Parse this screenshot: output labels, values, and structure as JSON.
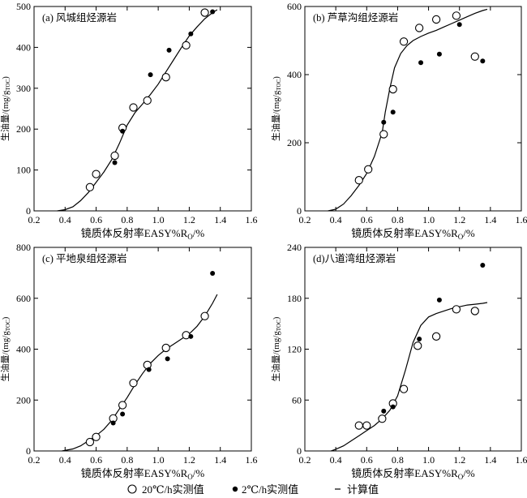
{
  "legend": {
    "open": "20℃/h实测值",
    "filled": "2℃/h实测值",
    "line": "计算值"
  },
  "chart_data": [
    {
      "type": "scatter",
      "panel_label": "(a) 风城组烃源岩",
      "xlabel": "镜质体反射率EASY%R",
      "xlabel_sub": "O",
      "xlabel_suffix": "/%",
      "ylabel": "生油量/(mg/g",
      "ylabel_sub": "TOC",
      "ylabel_suffix": ")",
      "xlim": [
        0.2,
        1.6
      ],
      "ylim": [
        0,
        500
      ],
      "xticks": [
        0.2,
        0.4,
        0.6,
        0.8,
        1.0,
        1.2,
        1.4,
        1.6
      ],
      "xtick_labels": [
        "0.2",
        "0.4",
        "0.6",
        "0.8",
        "1.0",
        "1.2",
        "1.4",
        "1.6"
      ],
      "yticks": [
        0,
        100,
        200,
        300,
        400,
        500
      ],
      "ytick_labels": [
        "0",
        "100",
        "200",
        "300",
        "400",
        "500"
      ],
      "series": [
        {
          "name": "20℃/h实测值",
          "marker": "open",
          "x": [
            0.56,
            0.6,
            0.72,
            0.77,
            0.84,
            0.93,
            1.05,
            1.18,
            1.3
          ],
          "y": [
            58,
            90,
            135,
            203,
            253,
            270,
            327,
            405,
            485
          ]
        },
        {
          "name": "2℃/h实测值",
          "marker": "filled",
          "x": [
            0.72,
            0.77,
            0.95,
            1.07,
            1.21,
            1.35
          ],
          "y": [
            118,
            195,
            333,
            393,
            433,
            487
          ]
        },
        {
          "name": "计算值",
          "marker": "line",
          "x": [
            0.35,
            0.4,
            0.45,
            0.5,
            0.55,
            0.6,
            0.65,
            0.7,
            0.75,
            0.8,
            0.85,
            0.9,
            0.95,
            1.0,
            1.05,
            1.1,
            1.15,
            1.2,
            1.25,
            1.3,
            1.35,
            1.38
          ],
          "y": [
            0,
            3,
            10,
            25,
            45,
            70,
            95,
            125,
            165,
            210,
            240,
            262,
            285,
            310,
            340,
            370,
            400,
            428,
            450,
            470,
            485,
            492
          ]
        }
      ]
    },
    {
      "type": "scatter",
      "panel_label": "(b) 芦草沟组烃源岩",
      "xlabel": "镜质体反射率EASY%R",
      "xlabel_sub": "O",
      "xlabel_suffix": "/%",
      "ylabel": "生油量/(mg/g",
      "ylabel_sub": "TOC",
      "ylabel_suffix": ")",
      "xlim": [
        0.2,
        1.6
      ],
      "ylim": [
        0,
        600
      ],
      "xticks": [
        0.2,
        0.4,
        0.6,
        0.8,
        1.0,
        1.2,
        1.4,
        1.6
      ],
      "xtick_labels": [
        "0.2",
        "0.4",
        "0.6",
        "0.8",
        "1.0",
        "1.2",
        "1.4",
        "1.6"
      ],
      "yticks": [
        0,
        200,
        400,
        600
      ],
      "ytick_labels": [
        "0",
        "200",
        "400",
        "600"
      ],
      "series": [
        {
          "name": "20℃/h实测值",
          "marker": "open",
          "x": [
            0.55,
            0.61,
            0.71,
            0.77,
            0.84,
            0.94,
            1.05,
            1.18,
            1.3
          ],
          "y": [
            90,
            122,
            225,
            357,
            497,
            537,
            562,
            573,
            453
          ]
        },
        {
          "name": "2℃/h实测值",
          "marker": "filled",
          "x": [
            0.71,
            0.77,
            0.95,
            1.07,
            1.2,
            1.35
          ],
          "y": [
            260,
            290,
            435,
            460,
            547,
            440
          ]
        },
        {
          "name": "计算值",
          "marker": "line",
          "x": [
            0.35,
            0.4,
            0.45,
            0.5,
            0.55,
            0.6,
            0.65,
            0.7,
            0.72,
            0.75,
            0.78,
            0.82,
            0.86,
            0.9,
            0.95,
            1.0,
            1.05,
            1.1,
            1.15,
            1.2,
            1.25,
            1.3,
            1.35,
            1.38
          ],
          "y": [
            0,
            5,
            20,
            45,
            75,
            110,
            160,
            230,
            290,
            360,
            420,
            462,
            485,
            500,
            512,
            522,
            530,
            540,
            550,
            560,
            570,
            580,
            588,
            592
          ]
        }
      ]
    },
    {
      "type": "scatter",
      "panel_label": "(c) 平地泉组烃源岩",
      "xlabel": "镜质体反射率EASY%R",
      "xlabel_sub": "O",
      "xlabel_suffix": "/%",
      "ylabel": "生油量/(mg/g",
      "ylabel_sub": "TOC",
      "ylabel_suffix": ")",
      "xlim": [
        0.2,
        1.6
      ],
      "ylim": [
        0,
        800
      ],
      "xticks": [
        0.2,
        0.4,
        0.6,
        0.8,
        1.0,
        1.2,
        1.4,
        1.6
      ],
      "xtick_labels": [
        "0.2",
        "0.4",
        "0.6",
        "0.8",
        "1.0",
        "1.2",
        "1.4",
        "1.6"
      ],
      "yticks": [
        0,
        200,
        400,
        600,
        800
      ],
      "ytick_labels": [
        "0",
        "200",
        "400",
        "600",
        "800"
      ],
      "series": [
        {
          "name": "20℃/h实测值",
          "marker": "open",
          "x": [
            0.56,
            0.6,
            0.71,
            0.77,
            0.84,
            0.93,
            1.05,
            1.18,
            1.3
          ],
          "y": [
            35,
            55,
            128,
            180,
            267,
            338,
            405,
            455,
            530
          ]
        },
        {
          "name": "2℃/h实测值",
          "marker": "filled",
          "x": [
            0.71,
            0.77,
            0.94,
            1.06,
            1.21,
            1.35
          ],
          "y": [
            110,
            145,
            320,
            362,
            450,
            698
          ]
        },
        {
          "name": "计算值",
          "marker": "line",
          "x": [
            0.38,
            0.45,
            0.5,
            0.55,
            0.6,
            0.65,
            0.7,
            0.75,
            0.8,
            0.85,
            0.9,
            0.95,
            1.0,
            1.05,
            1.1,
            1.15,
            1.2,
            1.25,
            1.3,
            1.35,
            1.38
          ],
          "y": [
            0,
            8,
            20,
            40,
            60,
            85,
            120,
            165,
            210,
            260,
            305,
            345,
            375,
            400,
            420,
            440,
            460,
            490,
            530,
            580,
            615
          ]
        }
      ]
    },
    {
      "type": "scatter",
      "panel_label": "(d)八道湾组烃源岩",
      "xlabel": "镜质体反射率EASY%R",
      "xlabel_sub": "O",
      "xlabel_suffix": "/%",
      "ylabel": "生油量/(mg/g",
      "ylabel_sub": "TOC",
      "ylabel_suffix": ")",
      "xlim": [
        0.2,
        1.6
      ],
      "ylim": [
        0,
        240
      ],
      "xticks": [
        0.2,
        0.4,
        0.6,
        0.8,
        1.0,
        1.2,
        1.4,
        1.6
      ],
      "xtick_labels": [
        "0.2",
        "0.4",
        "0.6",
        "0.8",
        "1.0",
        "1.2",
        "1.4",
        "1.6"
      ],
      "yticks": [
        0,
        60,
        120,
        180,
        240
      ],
      "ytick_labels": [
        "0",
        "60",
        "120",
        "180",
        "240"
      ],
      "series": [
        {
          "name": "20℃/h实测值",
          "marker": "open",
          "x": [
            0.55,
            0.6,
            0.7,
            0.77,
            0.84,
            0.93,
            1.05,
            1.18,
            1.3
          ],
          "y": [
            30,
            30,
            38,
            56,
            73,
            124,
            135,
            167,
            165
          ]
        },
        {
          "name": "2℃/h实测值",
          "marker": "filled",
          "x": [
            0.71,
            0.77,
            0.94,
            1.07,
            1.35
          ],
          "y": [
            47,
            52,
            132,
            178,
            219
          ]
        },
        {
          "name": "计算值",
          "marker": "line",
          "x": [
            0.37,
            0.4,
            0.45,
            0.5,
            0.55,
            0.6,
            0.65,
            0.7,
            0.75,
            0.8,
            0.85,
            0.9,
            0.95,
            1.0,
            1.05,
            1.1,
            1.15,
            1.2,
            1.25,
            1.3,
            1.35,
            1.38
          ],
          "y": [
            0,
            2,
            6,
            12,
            18,
            24,
            30,
            38,
            48,
            65,
            95,
            128,
            148,
            158,
            162,
            165,
            168,
            170,
            172,
            173,
            174,
            175
          ]
        }
      ]
    }
  ]
}
